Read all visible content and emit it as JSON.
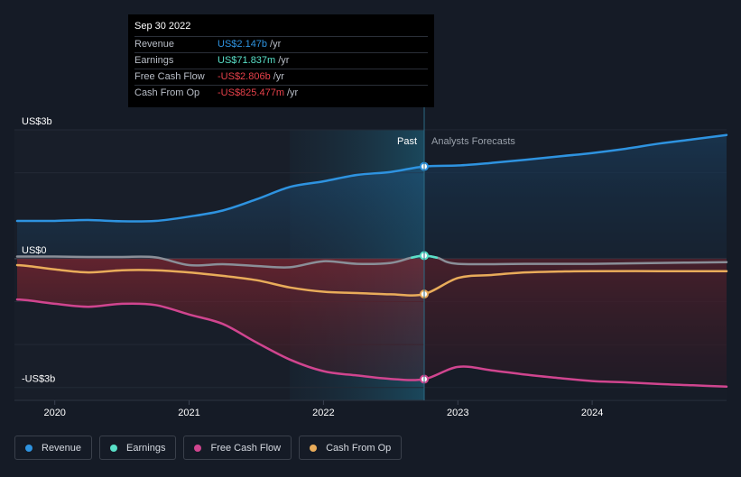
{
  "chart_data": {
    "type": "line",
    "x_axis": {
      "ticks": [
        "2020",
        "2021",
        "2022",
        "2023",
        "2024"
      ],
      "range": [
        2019.7,
        2025.0
      ]
    },
    "y_axis": {
      "range_billions": [
        -3.3,
        3.0
      ],
      "tick_labels": [
        "US$3b",
        "US$0",
        "-US$3b"
      ],
      "tick_values": [
        3,
        0,
        -3
      ]
    },
    "divider": {
      "x": 2022.75,
      "past_label": "Past",
      "forecast_label": "Analysts Forecasts"
    },
    "series": [
      {
        "name": "Revenue",
        "color": "#2e93e0",
        "points": [
          [
            2019.72,
            0.88
          ],
          [
            2019.8,
            0.88
          ],
          [
            2020.0,
            0.88
          ],
          [
            2020.25,
            0.9
          ],
          [
            2020.5,
            0.87
          ],
          [
            2020.75,
            0.88
          ],
          [
            2021.0,
            0.98
          ],
          [
            2021.25,
            1.12
          ],
          [
            2021.5,
            1.38
          ],
          [
            2021.75,
            1.67
          ],
          [
            2022.0,
            1.8
          ],
          [
            2022.25,
            1.95
          ],
          [
            2022.5,
            2.02
          ],
          [
            2022.75,
            2.147
          ],
          [
            2023.0,
            2.17
          ],
          [
            2023.25,
            2.23
          ],
          [
            2023.5,
            2.3
          ],
          [
            2023.75,
            2.38
          ],
          [
            2024.0,
            2.46
          ],
          [
            2024.25,
            2.56
          ],
          [
            2024.5,
            2.68
          ],
          [
            2024.75,
            2.78
          ],
          [
            2025.0,
            2.88
          ]
        ]
      },
      {
        "name": "Earnings",
        "color": "#59e0c8",
        "points": [
          [
            2019.72,
            0.05
          ],
          [
            2019.8,
            0.05
          ],
          [
            2020.0,
            0.05
          ],
          [
            2020.25,
            0.04
          ],
          [
            2020.5,
            0.04
          ],
          [
            2020.75,
            0.03
          ],
          [
            2021.0,
            -0.15
          ],
          [
            2021.25,
            -0.13
          ],
          [
            2021.5,
            -0.17
          ],
          [
            2021.75,
            -0.2
          ],
          [
            2022.0,
            -0.06
          ],
          [
            2022.25,
            -0.12
          ],
          [
            2022.5,
            -0.1
          ],
          [
            2022.65,
            0.02
          ],
          [
            2022.75,
            0.07
          ],
          [
            2022.85,
            0.02
          ],
          [
            2023.0,
            -0.12
          ],
          [
            2023.5,
            -0.12
          ],
          [
            2024.0,
            -0.12
          ],
          [
            2024.5,
            -0.1
          ],
          [
            2025.0,
            -0.08
          ]
        ]
      },
      {
        "name": "Free Cash Flow",
        "color": "#d0458f",
        "points": [
          [
            2019.72,
            -0.95
          ],
          [
            2019.8,
            -0.97
          ],
          [
            2020.0,
            -1.05
          ],
          [
            2020.25,
            -1.12
          ],
          [
            2020.5,
            -1.05
          ],
          [
            2020.75,
            -1.08
          ],
          [
            2021.0,
            -1.3
          ],
          [
            2021.25,
            -1.52
          ],
          [
            2021.5,
            -1.95
          ],
          [
            2021.75,
            -2.35
          ],
          [
            2022.0,
            -2.62
          ],
          [
            2022.25,
            -2.72
          ],
          [
            2022.5,
            -2.8
          ],
          [
            2022.75,
            -2.806
          ],
          [
            2023.0,
            -2.52
          ],
          [
            2023.25,
            -2.6
          ],
          [
            2023.5,
            -2.7
          ],
          [
            2023.75,
            -2.78
          ],
          [
            2024.0,
            -2.85
          ],
          [
            2024.25,
            -2.88
          ],
          [
            2024.5,
            -2.92
          ],
          [
            2024.75,
            -2.95
          ],
          [
            2025.0,
            -2.98
          ]
        ]
      },
      {
        "name": "Cash From Op",
        "color": "#e9ac5a",
        "points": [
          [
            2019.72,
            -0.15
          ],
          [
            2019.8,
            -0.17
          ],
          [
            2020.0,
            -0.25
          ],
          [
            2020.25,
            -0.32
          ],
          [
            2020.5,
            -0.27
          ],
          [
            2020.75,
            -0.27
          ],
          [
            2021.0,
            -0.32
          ],
          [
            2021.25,
            -0.4
          ],
          [
            2021.5,
            -0.5
          ],
          [
            2021.75,
            -0.67
          ],
          [
            2022.0,
            -0.77
          ],
          [
            2022.25,
            -0.8
          ],
          [
            2022.5,
            -0.83
          ],
          [
            2022.75,
            -0.825
          ],
          [
            2023.0,
            -0.45
          ],
          [
            2023.25,
            -0.38
          ],
          [
            2023.5,
            -0.32
          ],
          [
            2023.75,
            -0.3
          ],
          [
            2024.0,
            -0.29
          ],
          [
            2024.5,
            -0.29
          ],
          [
            2025.0,
            -0.29
          ]
        ]
      }
    ],
    "tooltip": {
      "date": "Sep 30 2022",
      "rows": [
        {
          "label": "Revenue",
          "value": "US$2.147b",
          "unit": "/yr",
          "color": "#2e93e0"
        },
        {
          "label": "Earnings",
          "value": "US$71.837m",
          "unit": "/yr",
          "color": "#59e0c8"
        },
        {
          "label": "Free Cash Flow",
          "value": "-US$2.806b",
          "unit": "/yr",
          "color": "#e6414a"
        },
        {
          "label": "Cash From Op",
          "value": "-US$825.477m",
          "unit": "/yr",
          "color": "#e6414a"
        }
      ]
    },
    "grid": true,
    "legend_position": "bottom-left"
  },
  "legend": [
    {
      "label": "Revenue",
      "color": "#2e93e0"
    },
    {
      "label": "Earnings",
      "color": "#59e0c8"
    },
    {
      "label": "Free Cash Flow",
      "color": "#d0458f"
    },
    {
      "label": "Cash From Op",
      "color": "#e9ac5a"
    }
  ]
}
